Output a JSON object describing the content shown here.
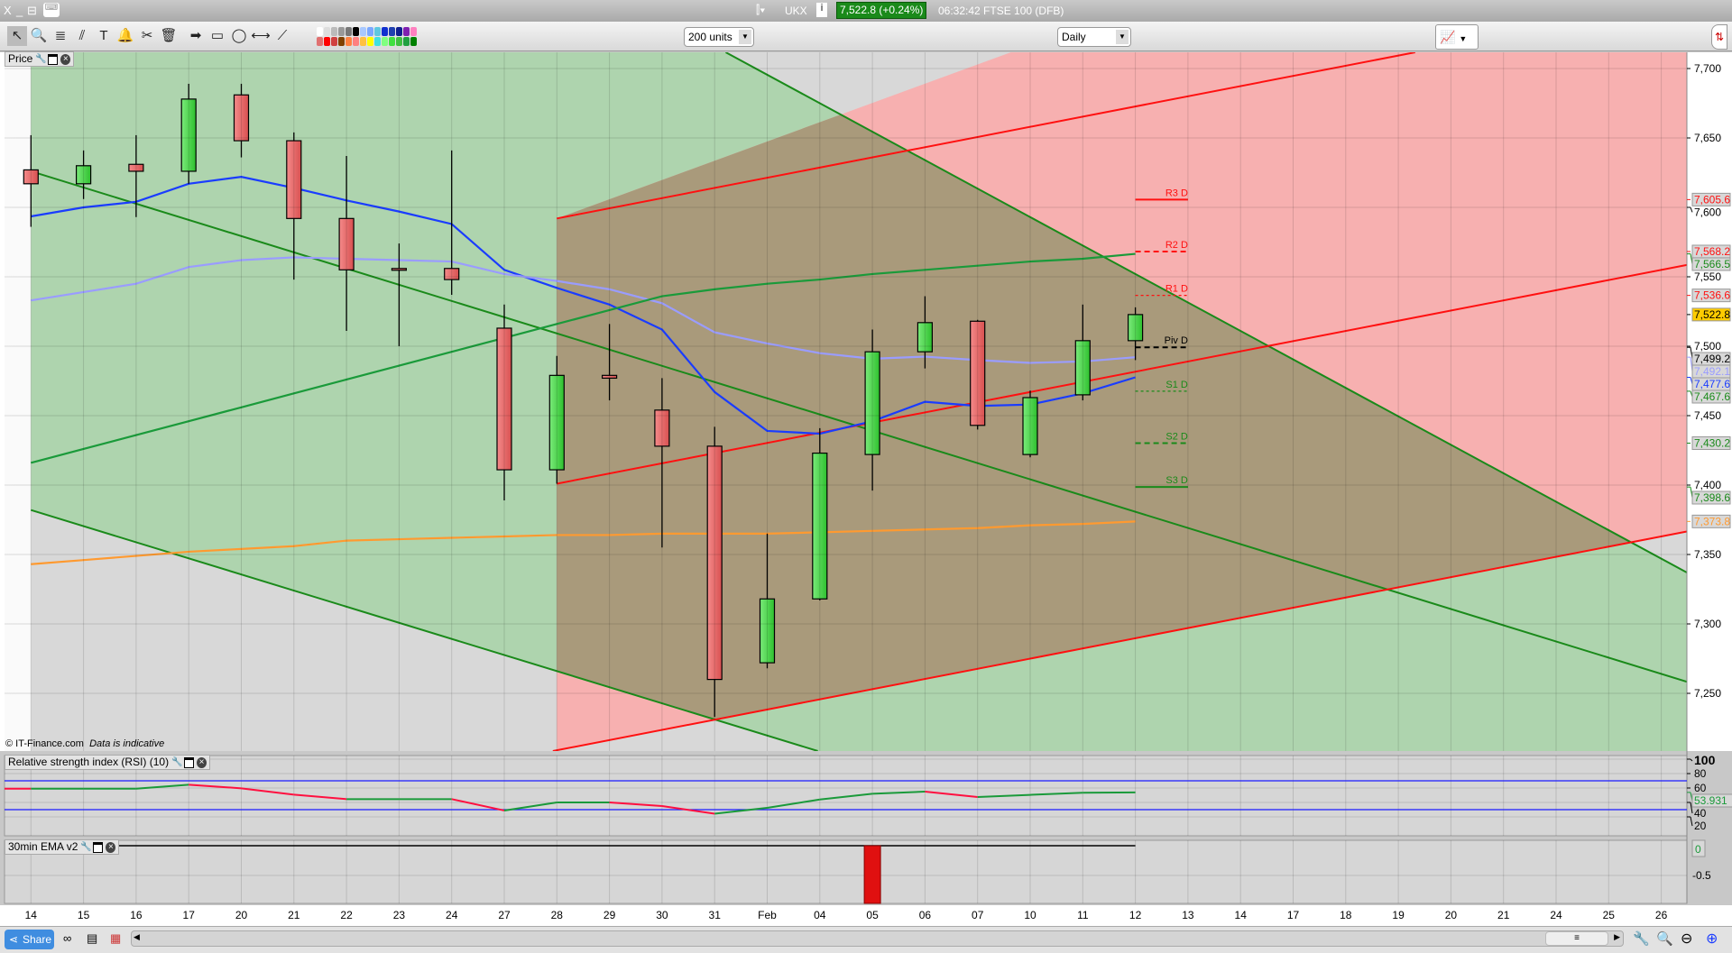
{
  "titlebar": {
    "window_controls": [
      "X",
      "_",
      "⊟"
    ],
    "symbol": "UKX",
    "price_badge": "7,522.8 (+0.24%)",
    "status": "06:32:42 FTSE 100 (DFB)",
    "accent": "#1a8a1a"
  },
  "toolbar": {
    "tools": [
      {
        "name": "pointer-icon",
        "glyph": "↖"
      },
      {
        "name": "zoom-icon",
        "glyph": "🔍"
      },
      {
        "name": "fibonacci-icon",
        "glyph": "≣"
      },
      {
        "name": "rail-icon",
        "glyph": "⫽"
      },
      {
        "name": "text-icon",
        "glyph": "T"
      },
      {
        "name": "alert-bell-icon",
        "glyph": "🔔"
      },
      {
        "name": "tools-icon",
        "glyph": "✂"
      },
      {
        "name": "trash-icon",
        "glyph": "🗑"
      },
      {
        "name": "arrow-icon",
        "glyph": "➡"
      },
      {
        "name": "rectangle-icon",
        "glyph": "▭"
      },
      {
        "name": "ellipse-icon",
        "glyph": "◯"
      },
      {
        "name": "horizontal-line-icon",
        "glyph": "⟷"
      },
      {
        "name": "trend-line-icon",
        "glyph": "⟋"
      }
    ],
    "palette_top": [
      "#ffffff",
      "#dddddd",
      "#bbbbbb",
      "#999999",
      "#777777",
      "#000000",
      "#a8c8ff",
      "#7aa8ff",
      "#5fc8e0",
      "#1030d0",
      "#2040b0",
      "#102090",
      "#8020b0",
      "#ff80c0"
    ],
    "palette_bottom": [
      "#e07070",
      "#ff0000",
      "#d04040",
      "#804000",
      "#ff8040",
      "#ff8080",
      "#ffc040",
      "#ffff00",
      "#40e0e0",
      "#80ff80",
      "#40e040",
      "#40c040",
      "#20a040",
      "#008000"
    ],
    "units": "200 units",
    "interval": "Daily"
  },
  "price_panel": {
    "label": "Price",
    "copyright": "© IT-Finance.com",
    "disclaimer": "Data is indicative"
  },
  "rsi_panel": {
    "label": "Relative strength index (RSI) (10)"
  },
  "ema_panel": {
    "label": "30min EMA v2"
  },
  "bottom": {
    "share": "Share",
    "thumb": "≡"
  },
  "chart_data": {
    "type": "candlestick",
    "x_labels": [
      "14",
      "15",
      "16",
      "17",
      "20",
      "21",
      "22",
      "23",
      "24",
      "27",
      "28",
      "29",
      "30",
      "31",
      "Feb",
      "04",
      "05",
      "06",
      "07",
      "10",
      "11",
      "12",
      "13",
      "14",
      "17",
      "18",
      "19",
      "20",
      "21",
      "24",
      "25",
      "26"
    ],
    "ylim": [
      7215,
      7712
    ],
    "y_ticks": [
      7700,
      7650,
      7600,
      7550,
      7500,
      7450,
      7400,
      7350,
      7300,
      7250
    ],
    "candles": [
      [
        7627,
        7652,
        7586,
        7617
      ],
      [
        7617,
        7641,
        7606,
        7630
      ],
      [
        7631,
        7652,
        7593,
        7626
      ],
      [
        7626,
        7689,
        7617,
        7678
      ],
      [
        7681,
        7689,
        7636,
        7648
      ],
      [
        7648,
        7654,
        7548,
        7592
      ],
      [
        7592,
        7637,
        7511,
        7555
      ],
      [
        7556,
        7574,
        7500,
        7555
      ],
      [
        7556,
        7641,
        7537,
        7548
      ],
      [
        7513,
        7530,
        7389,
        7411
      ],
      [
        7411,
        7493,
        7401,
        7479
      ],
      [
        7479,
        7516,
        7461,
        7477
      ],
      [
        7454,
        7477,
        7355,
        7428
      ],
      [
        7428,
        7442,
        7233,
        7260
      ],
      [
        7272,
        7365,
        7268,
        7318
      ],
      [
        7318,
        7441,
        7317,
        7423
      ],
      [
        7422,
        7512,
        7396,
        7496
      ],
      [
        7496,
        7536,
        7484,
        7517
      ],
      [
        7518,
        7519,
        7440,
        7443
      ],
      [
        7422,
        7468,
        7420,
        7463
      ],
      [
        7465,
        7530,
        7461,
        7504
      ],
      [
        7504,
        7528,
        7490,
        7522.8
      ]
    ],
    "series": [
      {
        "color": "#1a3cff",
        "values": [
          7593.5,
          7600,
          7604,
          7617,
          7622,
          7614,
          7605,
          7597,
          7588,
          7555,
          7542,
          7530,
          7512,
          7467,
          7439,
          7437,
          7446,
          7460,
          7457,
          7458,
          7466,
          7477.6
        ]
      },
      {
        "color": "#9a9cff",
        "values": [
          7533,
          7539,
          7545,
          7557,
          7562,
          7564,
          7563,
          7562,
          7561,
          7552,
          7547,
          7541,
          7531,
          7510,
          7502,
          7495,
          7491,
          7492.5,
          7490,
          7488,
          7489,
          7492.1
        ]
      },
      {
        "color": "#1a9a3a",
        "values": [
          7416,
          7426,
          7436,
          7446,
          7456,
          7466,
          7476,
          7486,
          7496,
          7506,
          7516,
          7526,
          7536,
          7541,
          7545,
          7548,
          7552,
          7555,
          7558,
          7561,
          7563,
          7566.5
        ]
      },
      {
        "color": "#ff9a30",
        "values": [
          7343,
          7346,
          7349,
          7352,
          7354,
          7356,
          7360,
          7361,
          7362,
          7363,
          7364,
          7364,
          7365,
          7365,
          7365,
          7366,
          7367,
          7368,
          7369,
          7371,
          7372,
          7373.8
        ]
      }
    ],
    "trend_lines": [
      {
        "color": "#1a8a1a",
        "from": [
          13,
          7716
        ],
        "to": [
          31,
          7347
        ],
        "extend": "both"
      },
      {
        "color": "#1a8a1a",
        "from": [
          0,
          7626
        ],
        "to": [
          31,
          7264
        ],
        "extend": "right"
      },
      {
        "color": "#1a8a1a",
        "from": [
          0,
          7382
        ],
        "to": [
          15,
          7208
        ],
        "extend": "right"
      },
      {
        "color": "#ff1010",
        "from": [
          10,
          7592
        ],
        "to": [
          28,
          7724
        ],
        "extend": "right"
      },
      {
        "color": "#ff1010",
        "from": [
          10,
          7401
        ],
        "to": [
          31,
          7555
        ],
        "extend": "right"
      },
      {
        "color": "#ff1010",
        "from": [
          13,
          7231
        ],
        "to": [
          31,
          7363
        ],
        "extend": "both"
      }
    ],
    "zone_colors": {
      "green": "#aed4ae",
      "red": "#f7b0b0",
      "overlap": "#a99a7b"
    },
    "pivots": [
      {
        "label": "R3 D",
        "value": 7605.6,
        "color": "#ff1010",
        "style": "solid"
      },
      {
        "label": "R2 D",
        "value": 7568.2,
        "color": "#ff1010",
        "style": "dashed"
      },
      {
        "label": "R1 D",
        "value": 7536.6,
        "color": "#ff1010",
        "style": "dotted"
      },
      {
        "label": "Piv D",
        "value": 7499.2,
        "color": "#000000",
        "style": "dashed"
      },
      {
        "label": "S1 D",
        "value": 7467.6,
        "color": "#1a8a1a",
        "style": "dotted"
      },
      {
        "label": "S2 D",
        "value": 7430.2,
        "color": "#1a8a1a",
        "style": "dashed"
      },
      {
        "label": "S3 D",
        "value": 7398.6,
        "color": "#1a8a1a",
        "style": "solid"
      }
    ],
    "badges": [
      {
        "text": "7,605.6",
        "value": 7605.6,
        "color": "#ff1010",
        "bg": "#d8d8d8"
      },
      {
        "text": "7,568.2",
        "value": 7568.2,
        "color": "#ff1010",
        "bg": "#d8d8d8"
      },
      {
        "text": "7,566.5",
        "value": 7566.5,
        "color": "#1a8a1a",
        "bg": "#d8d8d8"
      },
      {
        "text": "7,536.6",
        "value": 7536.6,
        "color": "#ff1010",
        "bg": "#d8d8d8"
      },
      {
        "text": "7,522.8",
        "value": 7522.8,
        "color": "#000000",
        "bg": "#ffcc00"
      },
      {
        "text": "7,499.2",
        "value": 7499.2,
        "color": "#000000",
        "bg": "#d8d8d8"
      },
      {
        "text": "7,492.1",
        "value": 7492.1,
        "color": "#9a9cff",
        "bg": "#d8d8d8"
      },
      {
        "text": "7,477.6",
        "value": 7477.6,
        "color": "#1a3cff",
        "bg": "#d8d8d8"
      },
      {
        "text": "7,467.6",
        "value": 7467.6,
        "color": "#1a8a1a",
        "bg": "#d8d8d8"
      },
      {
        "text": "7,430.2",
        "value": 7430.2,
        "color": "#1a8a1a",
        "bg": "#d8d8d8"
      },
      {
        "text": "7,398.6",
        "value": 7398.6,
        "color": "#1a8a1a",
        "bg": "#d8d8d8"
      },
      {
        "text": "7,373.8",
        "value": 7373.8,
        "color": "#ff9a30",
        "bg": "#d8d8d8"
      }
    ],
    "rsi": {
      "values": [
        59,
        59,
        59,
        64.6,
        59.6,
        50.8,
        44.6,
        44.6,
        44.6,
        28.8,
        40,
        40,
        35,
        24.4,
        32.5,
        44,
        52,
        55,
        47.5,
        50.5,
        53.5,
        53.931
      ],
      "levels": [
        70,
        30
      ],
      "ticks": [
        "100",
        "80",
        "60",
        "40",
        "20"
      ],
      "badge": "53.931",
      "up_color": "#1a9a3a",
      "down_color": "#ff1040"
    },
    "ema": {
      "bar_index": 16,
      "value": -1.0,
      "ticks": [
        "-0.5"
      ],
      "badge": "0",
      "color": "#e01010"
    }
  }
}
